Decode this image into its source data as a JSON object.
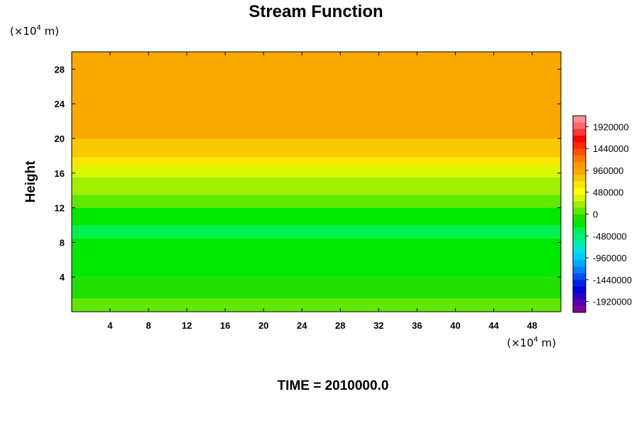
{
  "chart_data": {
    "type": "heatmap",
    "title": "Stream Function",
    "ylabel": "Height",
    "xlabel": "",
    "y_unit": "(×10",
    "y_unit_exp": "4",
    "y_unit_tail": " m)",
    "x_unit": "(×10",
    "x_unit_exp": "4",
    "x_unit_tail": " m)",
    "footer": "TIME = 2010000.0",
    "xlim": [
      0,
      51
    ],
    "ylim": [
      0,
      30
    ],
    "xticks": [
      4,
      8,
      12,
      16,
      20,
      24,
      28,
      32,
      36,
      40,
      44,
      48
    ],
    "yticks": [
      4,
      8,
      12,
      16,
      20,
      24,
      28
    ],
    "colorbar": {
      "labels": [
        1920000,
        1440000,
        960000,
        480000,
        0,
        -480000,
        -960000,
        -1440000,
        -1920000
      ],
      "min": -2160000,
      "max": 2160000,
      "colors": [
        "#7f00a0",
        "#5a00b4",
        "#3000c8",
        "#0000dc",
        "#0020ee",
        "#0050f5",
        "#0080ff",
        "#00a8ff",
        "#00ccff",
        "#00e4e4",
        "#00f0b0",
        "#00f080",
        "#00f050",
        "#00e800",
        "#20e000",
        "#60e800",
        "#a0f000",
        "#d8f800",
        "#ffff00",
        "#f8e800",
        "#f8c800",
        "#f8a800",
        "#ff9900",
        "#ff7800",
        "#ff5000",
        "#ff2800",
        "#ff0000",
        "#ff3838",
        "#ff6868",
        "#ff9090"
      ]
    },
    "bands": [
      {
        "y": [
          0,
          1.5
        ],
        "value": 60000
      },
      {
        "y": [
          1.5,
          4.0
        ],
        "value": -120000
      },
      {
        "y": [
          4.0,
          8.5
        ],
        "value": -280000
      },
      {
        "y": [
          8.5,
          10.0
        ],
        "value": -380000
      },
      {
        "y": [
          10.0,
          12.0
        ],
        "value": -180000
      },
      {
        "y": [
          12.0,
          13.5
        ],
        "value": 40000
      },
      {
        "y": [
          13.5,
          15.5
        ],
        "value": 200000
      },
      {
        "y": [
          15.5,
          16.8
        ],
        "value": 420000
      },
      {
        "y": [
          16.8,
          17.8
        ],
        "value": 620000
      },
      {
        "y": [
          17.8,
          20.0
        ],
        "value": 860000
      },
      {
        "y": [
          20.0,
          30.0
        ],
        "value": 1000000
      }
    ]
  }
}
